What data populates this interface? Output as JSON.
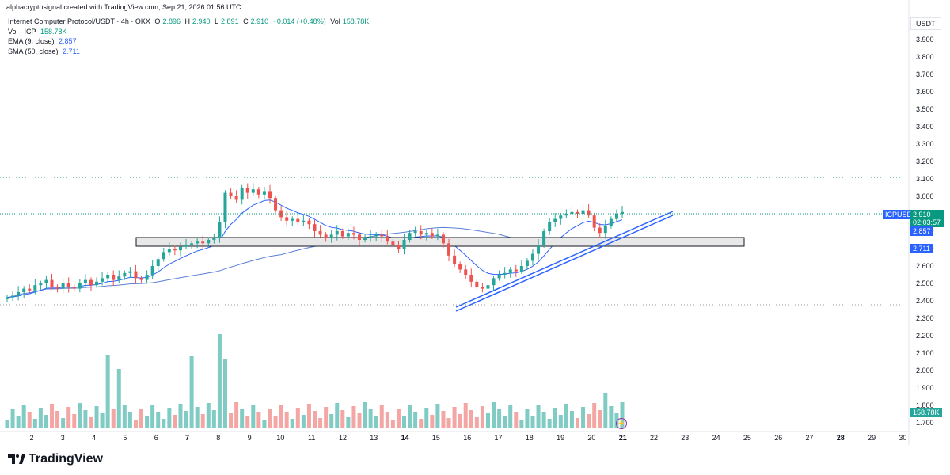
{
  "header": {
    "attribution": "alphacryptosignal created with TradingView.com, Sep 21, 2026 01:56 UTC",
    "symbol_line": "Internet Computer Protocol/USDT · 4h · OKX",
    "ohlc": {
      "o_label": "O",
      "o": "2.896",
      "h_label": "H",
      "h": "2.940",
      "l_label": "L",
      "l": "2.891",
      "c_label": "C",
      "c": "2.910",
      "change": "+0.014 (+0.48%)",
      "vol_label": "Vol",
      "vol": "158.78K"
    }
  },
  "legend": {
    "vol_label": "Vol · ICP",
    "vol_value": "158.78K",
    "ema_label": "EMA (9, close)",
    "ema_value": "2.857",
    "sma_label": "SMA (50, close)",
    "sma_value": "2.711"
  },
  "axis": {
    "currency": "USDT",
    "price_ticks": [
      "3.900",
      "3.800",
      "3.700",
      "3.600",
      "3.500",
      "3.400",
      "3.300",
      "3.200",
      "3.100",
      "3.000",
      "2.900",
      "2.800",
      "2.700",
      "2.600",
      "2.500",
      "2.400",
      "2.300",
      "2.200",
      "2.100",
      "2.000",
      "1.900",
      "1.800",
      "1.700"
    ],
    "time_ticks": [
      "2",
      "3",
      "4",
      "5",
      "6",
      "7",
      "8",
      "9",
      "10",
      "11",
      "12",
      "13",
      "14",
      "15",
      "16",
      "17",
      "18",
      "19",
      "20",
      "21",
      "22",
      "23",
      "24",
      "25",
      "26",
      "27",
      "28",
      "29",
      "30"
    ]
  },
  "price_tags": {
    "symbol": "ICPUSDT",
    "last": "2.910",
    "countdown": "02:03:57",
    "ema": "2.857",
    "sma": "2.711",
    "volume": "158.78K"
  },
  "footer": {
    "brand": "TradingView"
  },
  "colors": {
    "up": "#26a69a",
    "down": "#ef5350",
    "ema": "#2962ff",
    "sma": "#5b7fd6",
    "trendline": "#2962ff",
    "vol_up": "#80cbc4",
    "vol_down": "#f4a6a4"
  },
  "chart_data": {
    "type": "candlestick",
    "symbol": "ICPUSDT",
    "timeframe": "4h",
    "candles_c": [
      2.42,
      2.43,
      2.45,
      2.47,
      2.46,
      2.49,
      2.5,
      2.52,
      2.48,
      2.47,
      2.5,
      2.48,
      2.47,
      2.5,
      2.52,
      2.49,
      2.51,
      2.53,
      2.55,
      2.52,
      2.54,
      2.56,
      2.57,
      2.53,
      2.52,
      2.55,
      2.6,
      2.64,
      2.68,
      2.7,
      2.69,
      2.71,
      2.72,
      2.73,
      2.74,
      2.73,
      2.75,
      2.76,
      2.85,
      3.02,
      3.0,
      2.98,
      3.05,
      3.02,
      3.04,
      3.01,
      3.03,
      2.99,
      2.92,
      2.88,
      2.86,
      2.87,
      2.85,
      2.86,
      2.84,
      2.8,
      2.78,
      2.76,
      2.78,
      2.8,
      2.77,
      2.79,
      2.78,
      2.75,
      2.76,
      2.77,
      2.78,
      2.77,
      2.74,
      2.72,
      2.7,
      2.75,
      2.79,
      2.8,
      2.78,
      2.79,
      2.77,
      2.78,
      2.73,
      2.66,
      2.61,
      2.58,
      2.55,
      2.51,
      2.48,
      2.47,
      2.49,
      2.53,
      2.55,
      2.56,
      2.58,
      2.57,
      2.6,
      2.63,
      2.67,
      2.72,
      2.8,
      2.85,
      2.87,
      2.89,
      2.9,
      2.91,
      2.9,
      2.92,
      2.89,
      2.82,
      2.79,
      2.83,
      2.87,
      2.9,
      2.91
    ],
    "ema9_last": 2.857,
    "sma50_last": 2.711,
    "volume_last": "158.78K",
    "ylim": [
      1.65,
      3.97
    ]
  }
}
